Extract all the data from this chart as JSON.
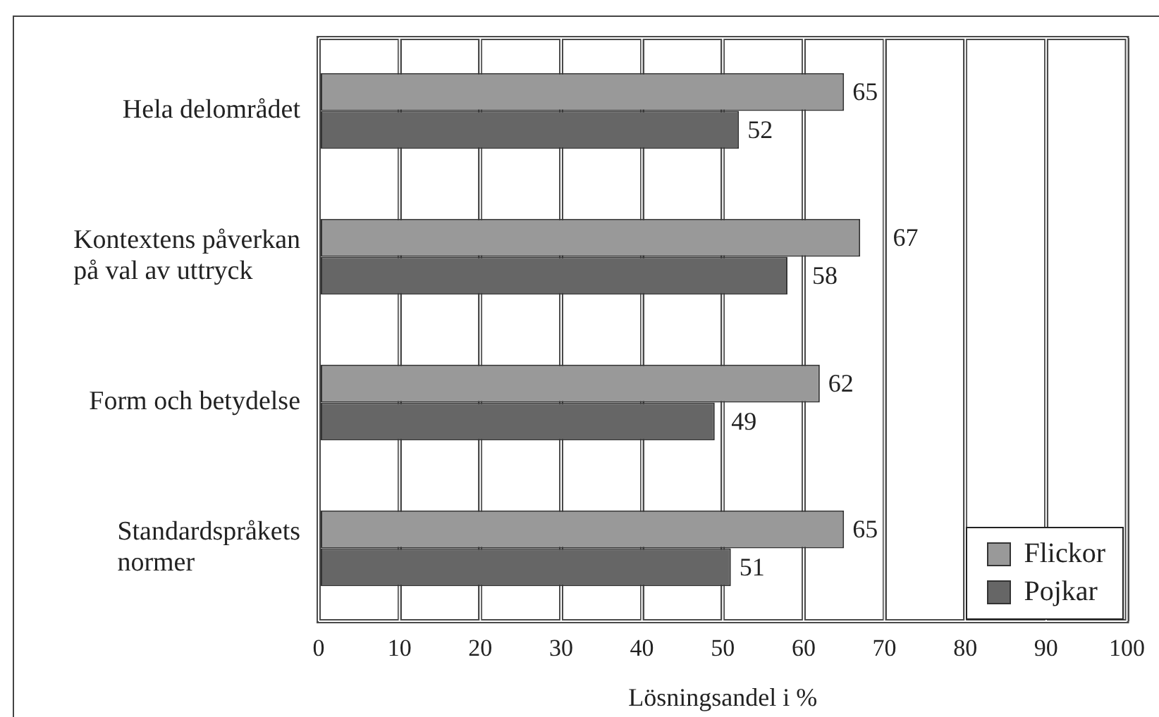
{
  "chart_data": {
    "type": "bar",
    "orientation": "horizontal",
    "categories": [
      "Hela delområdet",
      "Kontextens påverkan på val av uttryck",
      "Form och betydelse",
      "Standardspråkets normer"
    ],
    "series": [
      {
        "name": "Flickor",
        "color": "#999999",
        "values": [
          65,
          67,
          62,
          65
        ]
      },
      {
        "name": "Pojkar",
        "color": "#666666",
        "values": [
          52,
          58,
          49,
          51
        ]
      }
    ],
    "xlim": [
      0,
      100
    ],
    "xticks": [
      0,
      10,
      20,
      30,
      40,
      50,
      60,
      70,
      80,
      90,
      100
    ],
    "xlabel": "Lösningsandel i %",
    "data_labels": true,
    "grid": "x",
    "legend": "bottom right"
  }
}
